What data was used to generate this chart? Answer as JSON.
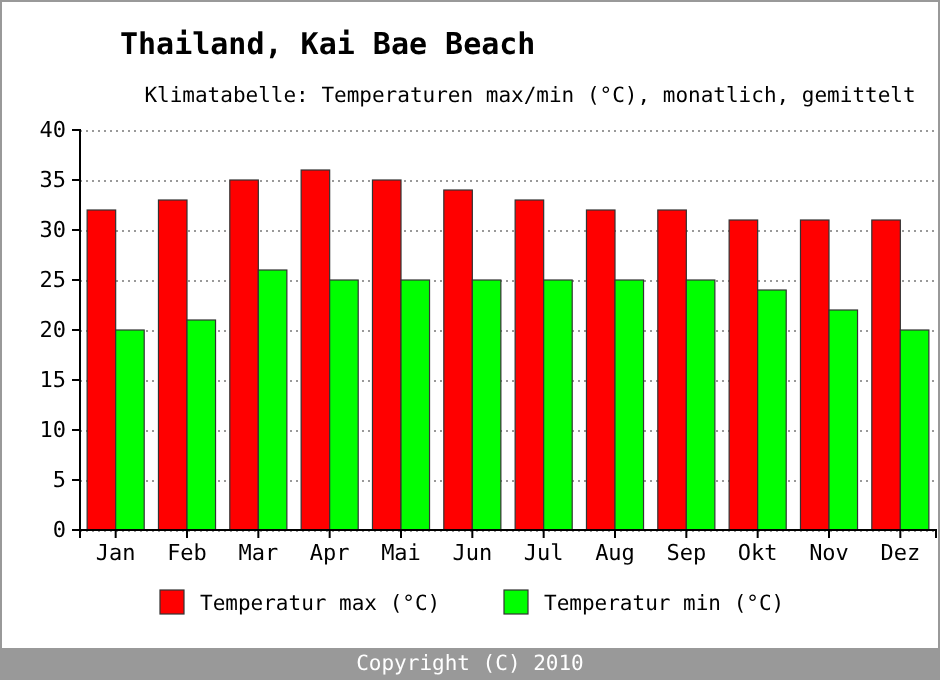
{
  "chart_data": {
    "type": "bar",
    "title": "Thailand, Kai Bae Beach",
    "subtitle": "Klimatabelle: Temperaturen max/min (°C), monatlich, gemittelt",
    "categories": [
      "Jan",
      "Feb",
      "Mar",
      "Apr",
      "Mai",
      "Jun",
      "Jul",
      "Aug",
      "Sep",
      "Okt",
      "Nov",
      "Dez"
    ],
    "series": [
      {
        "name": "Temperatur max (°C)",
        "color": "#ff0000",
        "values": [
          32,
          33,
          35,
          36,
          35,
          34,
          33,
          32,
          32,
          31,
          31,
          31
        ]
      },
      {
        "name": "Temperatur min (°C)",
        "color": "#00ff00",
        "values": [
          20,
          21,
          26,
          25,
          25,
          25,
          25,
          25,
          25,
          24,
          22,
          20
        ]
      }
    ],
    "ylim": [
      0,
      40
    ],
    "yticks": [
      0,
      5,
      10,
      15,
      20,
      25,
      30,
      35,
      40
    ],
    "grid": "y",
    "legend": "bottom",
    "annotations": [
      "Copyright (C) 2010"
    ]
  }
}
